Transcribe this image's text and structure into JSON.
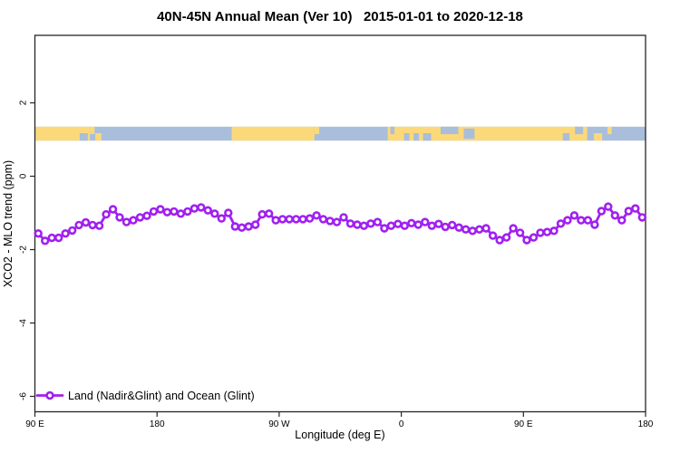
{
  "title": "40N-45N Annual Mean (Ver 10)   2015-01-01 to 2020-12-18",
  "colors": {
    "series": "#A020F0",
    "marker_fill": "#FFFFFF",
    "land": "#FBD97B",
    "ocean": "#A8BEDB",
    "axis": "#262626",
    "background": "#FFFFFF"
  },
  "chart_data": {
    "type": "line",
    "title": "40N-45N Annual Mean (Ver 10)   2015-01-01 to 2020-12-18",
    "xlabel": "Longitude (deg E)",
    "ylabel": "XCO2 - MLO trend (ppm)",
    "x_domain_deg_continuous": [
      90,
      540
    ],
    "ylim": [
      -6.42,
      3.84
    ],
    "grid": false,
    "x_ticks": [
      {
        "pos": 90,
        "label": "90 E"
      },
      {
        "pos": 180,
        "label": "180"
      },
      {
        "pos": 270,
        "label": "90 W"
      },
      {
        "pos": 360,
        "label": "0"
      },
      {
        "pos": 450,
        "label": "90 E"
      },
      {
        "pos": 540,
        "label": "180"
      }
    ],
    "y_ticks": [
      {
        "pos": 2,
        "label": "2"
      },
      {
        "pos": 0,
        "label": "0"
      },
      {
        "pos": -2,
        "label": "-2"
      },
      {
        "pos": -4,
        "label": "-4"
      },
      {
        "pos": -6,
        "label": "-6"
      }
    ],
    "x_bins": {
      "start_deg": 92.5,
      "step_deg": 5,
      "count": 90
    },
    "series": [
      {
        "name": "Land (Nadir&Glint) and Ocean (Glint)",
        "marker": "open-circle",
        "values": [
          -1.56,
          -1.76,
          -1.68,
          -1.68,
          -1.56,
          -1.48,
          -1.33,
          -1.26,
          -1.33,
          -1.35,
          -1.04,
          -0.9,
          -1.12,
          -1.25,
          -1.2,
          -1.12,
          -1.08,
          -0.96,
          -0.9,
          -0.98,
          -0.96,
          -1.02,
          -0.96,
          -0.88,
          -0.85,
          -0.93,
          -1.02,
          -1.15,
          -1.0,
          -1.37,
          -1.4,
          -1.37,
          -1.32,
          -1.04,
          -1.02,
          -1.2,
          -1.17,
          -1.17,
          -1.17,
          -1.17,
          -1.15,
          -1.07,
          -1.17,
          -1.22,
          -1.25,
          -1.12,
          -1.29,
          -1.32,
          -1.35,
          -1.29,
          -1.25,
          -1.42,
          -1.35,
          -1.3,
          -1.35,
          -1.28,
          -1.32,
          -1.25,
          -1.35,
          -1.3,
          -1.38,
          -1.33,
          -1.4,
          -1.45,
          -1.49,
          -1.45,
          -1.42,
          -1.62,
          -1.74,
          -1.67,
          -1.42,
          -1.54,
          -1.74,
          -1.67,
          -1.54,
          -1.52,
          -1.49,
          -1.29,
          -1.2,
          -1.07,
          -1.2,
          -1.2,
          -1.32,
          -0.95,
          -0.83,
          -1.07,
          -1.2,
          -0.95,
          -0.88,
          -1.12
        ]
      }
    ],
    "legend": {
      "position": "bottom-left",
      "label": "Land (Nadir&Glint) and Ocean (Glint)"
    },
    "map_band": {
      "y_from_ppm": 0.97,
      "y_to_ppm": 1.35,
      "land_segments_deg": [
        [
          90,
          130.5
        ],
        [
          235,
          296
        ],
        [
          350,
          497
        ]
      ],
      "patches": [
        {
          "name": "bohai-sea",
          "kind": "ocean",
          "from": 123,
          "to": 129,
          "part": "bottom"
        },
        {
          "name": "japan-coast",
          "kind": "land",
          "from": 130.5,
          "to": 134,
          "part": "top"
        },
        {
          "name": "hokkaido",
          "kind": "land",
          "from": 134.5,
          "to": 139,
          "part": "bottom"
        },
        {
          "name": "na-east-coast",
          "kind": "land",
          "from": 296,
          "to": 299.5,
          "part": "top"
        },
        {
          "name": "bay-of-biscay",
          "kind": "ocean",
          "from": 352,
          "to": 355,
          "part": "top"
        },
        {
          "name": "west-mediterranean",
          "kind": "ocean",
          "from": 362,
          "to": 366,
          "part": "bottom"
        },
        {
          "name": "tyrrhenian-sea",
          "kind": "ocean",
          "from": 369,
          "to": 373,
          "part": "bottom"
        },
        {
          "name": "adriatic-sea",
          "kind": "ocean",
          "from": 376,
          "to": 382,
          "part": "bottom"
        },
        {
          "name": "black-sea",
          "kind": "ocean",
          "from": 389,
          "to": 402,
          "part": "top"
        },
        {
          "name": "caspian-sea",
          "kind": "ocean",
          "from": 406,
          "to": 414,
          "part": "mid"
        },
        {
          "name": "bohai-sea-2",
          "kind": "ocean",
          "from": 479,
          "to": 484,
          "part": "bottom"
        },
        {
          "name": "sea-of-japan",
          "kind": "ocean",
          "from": 488,
          "to": 494,
          "part": "top"
        },
        {
          "name": "japan",
          "kind": "land",
          "from": 502,
          "to": 508,
          "part": "bottom"
        },
        {
          "name": "kuril-coast",
          "kind": "land",
          "from": 512,
          "to": 515,
          "part": "top"
        }
      ]
    }
  }
}
